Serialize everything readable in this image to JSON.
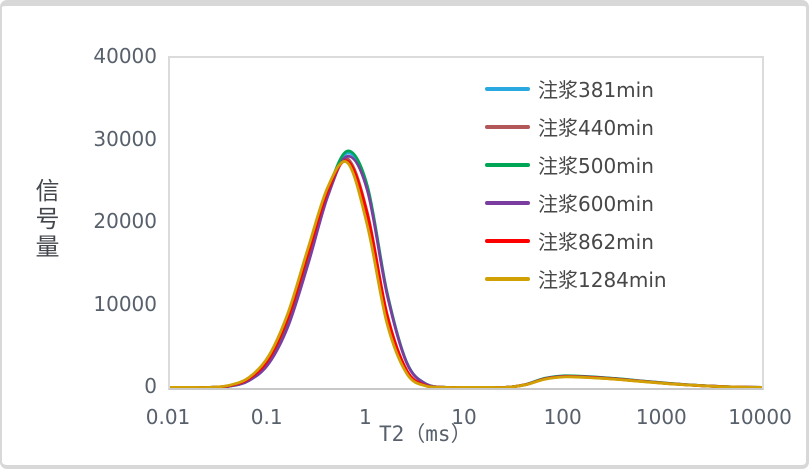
{
  "frame": {
    "background": "#ffffff",
    "border_color": "#d8d8d8"
  },
  "chart_data": {
    "type": "line",
    "title": "",
    "xlabel": "T2（ms）",
    "ylabel": "信号量",
    "x_scale": "log10",
    "xlim": [
      0.01,
      10000
    ],
    "ylim": [
      0,
      40000
    ],
    "grid": false,
    "legend_position": "right-top",
    "axis_color": "#dbdbdb",
    "tick_text_color": "#57606B",
    "yticks": [
      0,
      10000,
      20000,
      30000,
      40000
    ],
    "ytick_labels": [
      "0",
      "10000",
      "20000",
      "30000",
      "40000"
    ],
    "xticks": [
      0.01,
      0.1,
      1,
      10,
      100,
      1000,
      10000
    ],
    "xtick_labels": [
      "0.01",
      "0.1",
      "1",
      "10",
      "100",
      "1000",
      "10000"
    ],
    "x_t2_ms": [
      0.01,
      0.0158,
      0.0251,
      0.0398,
      0.0631,
      0.1,
      0.158,
      0.251,
      0.398,
      0.631,
      1,
      1.58,
      2.51,
      3.98,
      6.31,
      10,
      15.8,
      25.1,
      39.8,
      63.1,
      100,
      158,
      251,
      398,
      631,
      1000,
      1585,
      2512,
      3981,
      6310,
      10000
    ],
    "series": [
      {
        "name": "注浆381min",
        "color": "#2AA9E0",
        "values": [
          0,
          6,
          40,
          218,
          913,
          3000,
          7663,
          15240,
          23609,
          28476,
          24298,
          11596,
          3065,
          448,
          37,
          0,
          4,
          64,
          409,
          1149,
          1447,
          1381,
          1238,
          1042,
          825,
          613,
          428,
          281,
          173,
          100,
          54
        ]
      },
      {
        "name": "注浆440min",
        "color": "#B25757",
        "values": [
          0,
          8,
          56,
          286,
          1148,
          3578,
          8690,
          16441,
          24222,
          27792,
          21287,
          9027,
          2118,
          275,
          19,
          0,
          4,
          62,
          395,
          1110,
          1397,
          1333,
          1196,
          1007,
          797,
          592,
          413,
          271,
          167,
          96,
          53
        ]
      },
      {
        "name": "注浆500min",
        "color": "#00A655",
        "values": [
          0,
          6,
          41,
          220,
          921,
          3025,
          7730,
          15373,
          23814,
          28724,
          24509,
          11697,
          3092,
          452,
          38,
          0,
          4,
          65,
          417,
          1173,
          1477,
          1409,
          1264,
          1064,
          842,
          626,
          437,
          286,
          176,
          102,
          56
        ]
      },
      {
        "name": "注浆600min",
        "color": "#7B3DA0",
        "values": [
          0,
          6,
          40,
          215,
          900,
          2957,
          7556,
          15027,
          23280,
          28079,
          23959,
          11433,
          3022,
          441,
          37,
          0,
          4,
          62,
          400,
          1125,
          1417,
          1352,
          1213,
          1021,
          808,
          600,
          419,
          275,
          169,
          98,
          53
        ]
      },
      {
        "name": "注浆862min",
        "color": "#FF0000",
        "values": [
          0,
          8,
          55,
          283,
          1136,
          3539,
          8597,
          16264,
          23961,
          27492,
          21057,
          8929,
          2096,
          272,
          19,
          0,
          4,
          61,
          389,
          1094,
          1377,
          1314,
          1179,
          992,
          785,
          583,
          407,
          267,
          164,
          95,
          52
        ]
      },
      {
        "name": "注浆1284min",
        "color": "#D0A004",
        "values": [
          0,
          8,
          63,
          325,
          1278,
          3885,
          9197,
          16972,
          24387,
          27281,
          19705,
          7876,
          1742,
          213,
          14,
          0,
          4,
          59,
          381,
          1070,
          1347,
          1285,
          1153,
          971,
          768,
          571,
          398,
          261,
          161,
          93,
          51
        ]
      }
    ]
  }
}
